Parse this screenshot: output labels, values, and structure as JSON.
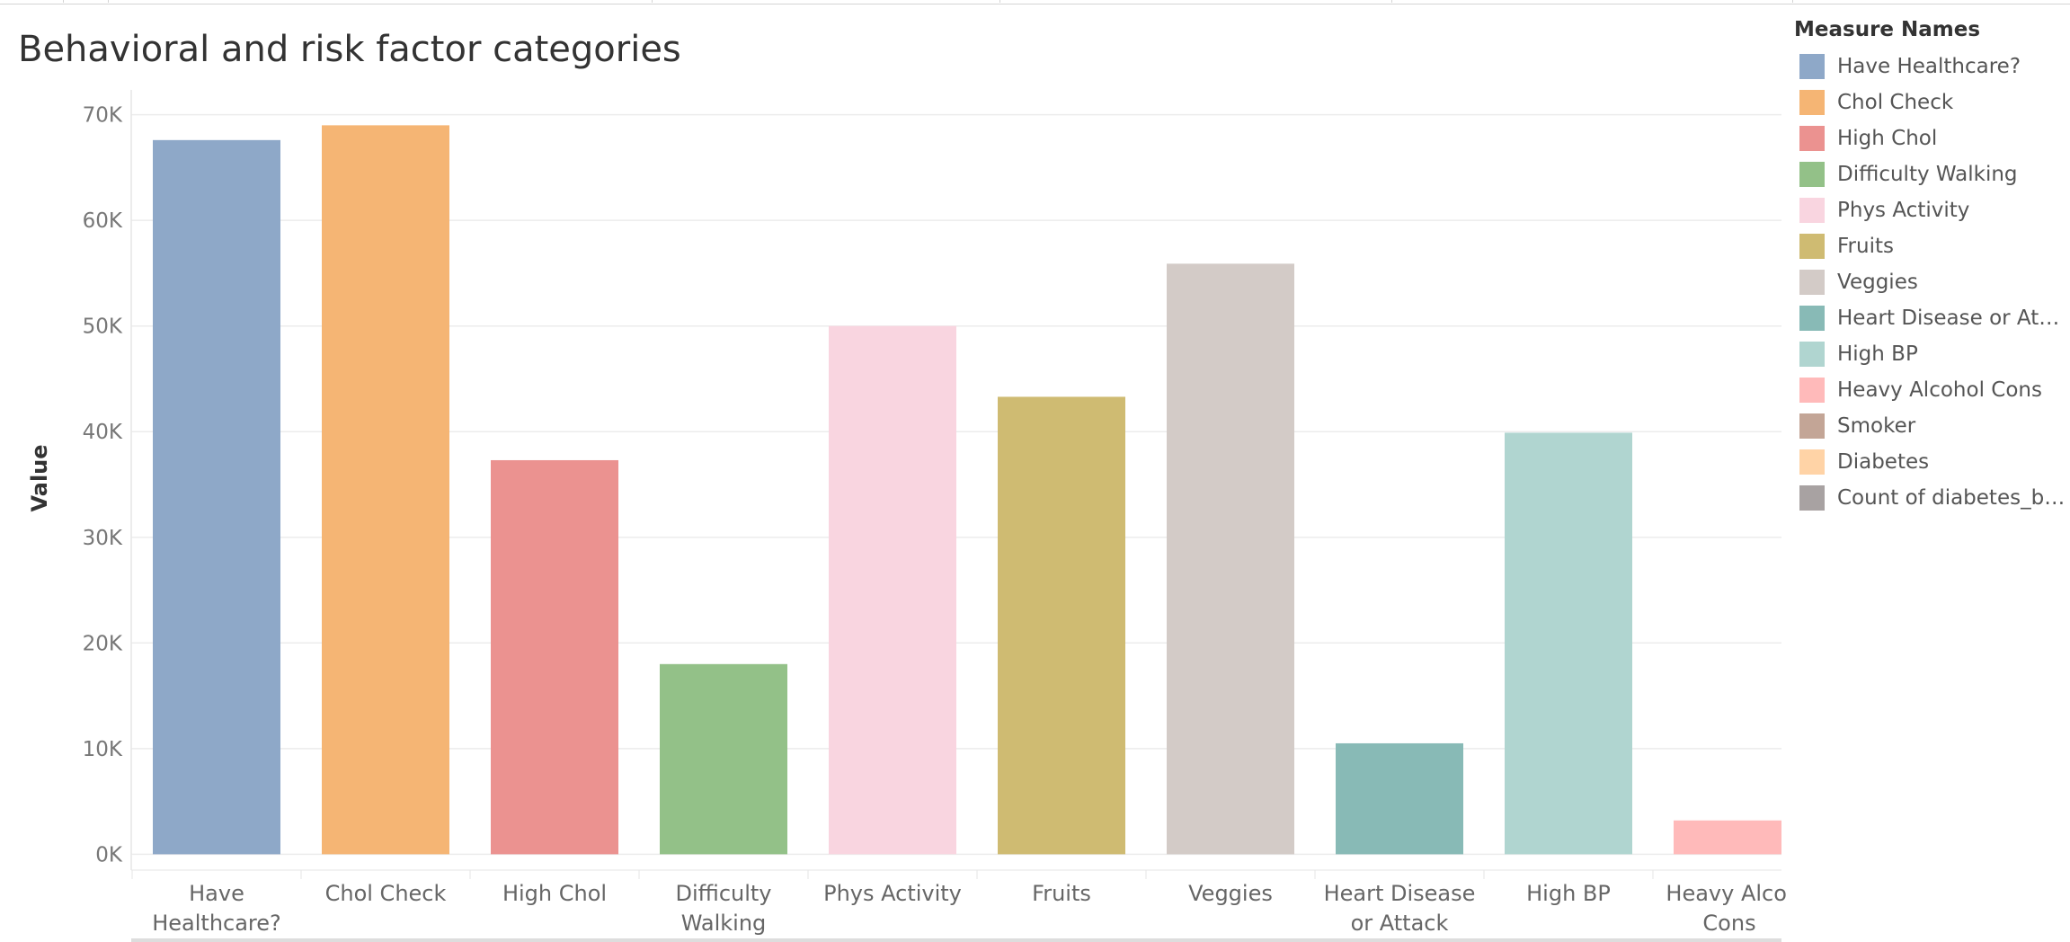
{
  "chart_data": {
    "type": "bar",
    "title": "Behavioral and risk factor categories",
    "ylabel": "Value",
    "xlabel": "",
    "ylim": [
      -1500,
      71500
    ],
    "yticks": [
      0,
      10000,
      20000,
      30000,
      40000,
      50000,
      60000,
      70000
    ],
    "ytick_labels": [
      "0K",
      "10K",
      "20K",
      "30K",
      "40K",
      "50K",
      "60K",
      "70K"
    ],
    "grid": true,
    "categories": [
      {
        "label": [
          "Have",
          "Healthcare?"
        ],
        "name": "Have Healthcare?",
        "value": 67600,
        "color": "#8ea8c8"
      },
      {
        "label": [
          "Chol Check"
        ],
        "name": "Chol Check",
        "value": 69000,
        "color": "#f5b574"
      },
      {
        "label": [
          "High Chol"
        ],
        "name": "High Chol",
        "value": 37300,
        "color": "#eb9290"
      },
      {
        "label": [
          "Difficulty",
          "Walking"
        ],
        "name": "Difficulty Walking",
        "value": 18000,
        "color": "#93c188"
      },
      {
        "label": [
          "Phys Activity"
        ],
        "name": "Phys Activity",
        "value": 50000,
        "color": "#f9d5e0"
      },
      {
        "label": [
          "Fruits"
        ],
        "name": "Fruits",
        "value": 43300,
        "color": "#cfbb72"
      },
      {
        "label": [
          "Veggies"
        ],
        "name": "Veggies",
        "value": 55900,
        "color": "#d3cbc7"
      },
      {
        "label": [
          "Heart Disease",
          "or Attack"
        ],
        "name": "Heart Disease or Attack",
        "value": 10500,
        "color": "#88bab6"
      },
      {
        "label": [
          "High BP"
        ],
        "name": "High BP",
        "value": 39900,
        "color": "#b0d5d0"
      },
      {
        "label": [
          "Heavy Alcol",
          "Cons"
        ],
        "name": "Heavy Alcohol Cons",
        "value": 3200,
        "color": "#ffbaba"
      }
    ],
    "legend": {
      "title": "Measure Names",
      "placement": "right",
      "items": [
        {
          "label": "Have Healthcare?",
          "color": "#8ea8c8"
        },
        {
          "label": "Chol Check",
          "color": "#f5b574"
        },
        {
          "label": "High Chol",
          "color": "#eb9290"
        },
        {
          "label": "Difficulty Walking",
          "color": "#93c188"
        },
        {
          "label": "Phys Activity",
          "color": "#f9d5e0"
        },
        {
          "label": "Fruits",
          "color": "#cfbb72"
        },
        {
          "label": "Veggies",
          "color": "#d3cbc7"
        },
        {
          "label": "Heart Disease or Atta...",
          "color": "#88bab6"
        },
        {
          "label": "High BP",
          "color": "#b0d5d0"
        },
        {
          "label": "Heavy Alcohol Cons",
          "color": "#ffbaba"
        },
        {
          "label": "Smoker",
          "color": "#c3a596"
        },
        {
          "label": "Diabetes",
          "color": "#ffd3a6"
        },
        {
          "label": "Count of diabetes_bi...",
          "color": "#a8a2a2"
        }
      ]
    }
  }
}
